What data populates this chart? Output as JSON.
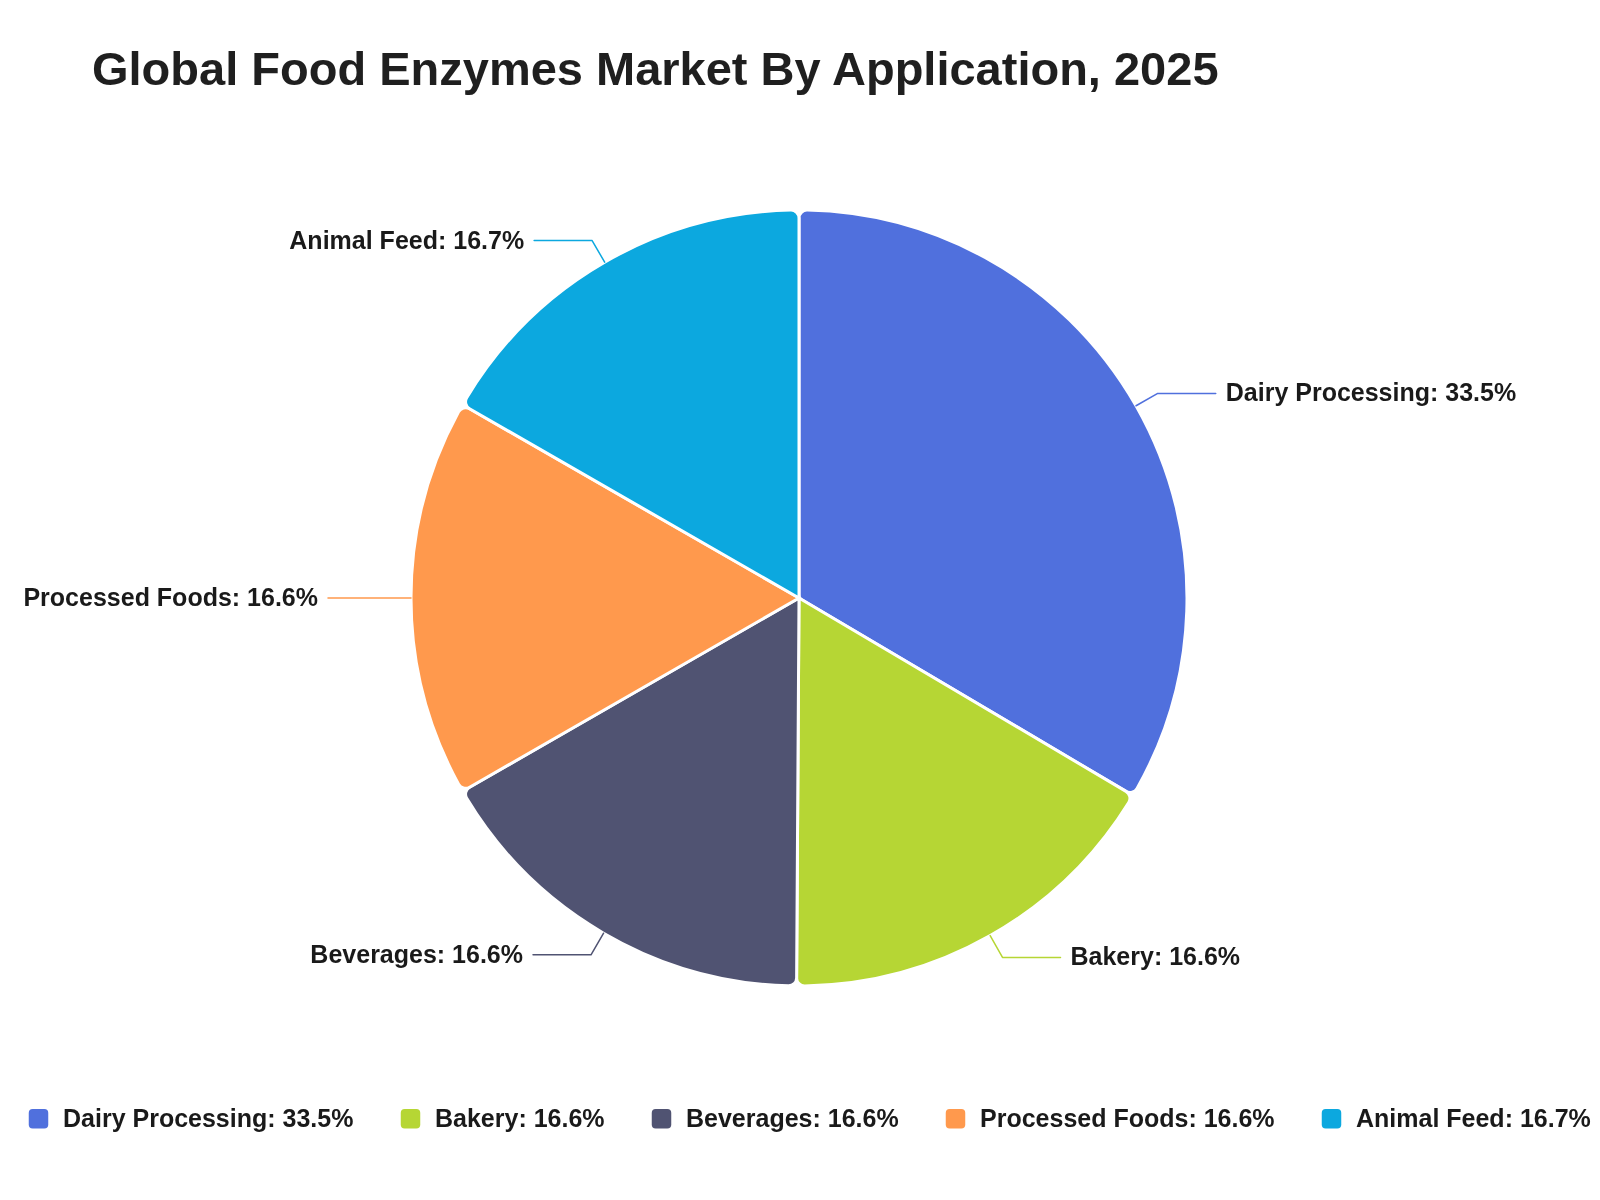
{
  "chart_data": {
    "type": "pie",
    "title": "Global Food Enzymes Market By Application, 2025",
    "categories": [
      "Dairy Processing",
      "Bakery",
      "Beverages",
      "Processed Foods",
      "Animal Feed"
    ],
    "values": [
      33.5,
      16.6,
      16.6,
      16.6,
      16.7
    ],
    "colors": [
      "#5070dd",
      "#b6d634",
      "#505372",
      "#ff994d",
      "#0ca8df"
    ],
    "value_labels": [
      "33.5%",
      "16.6%",
      "16.6%",
      "16.6%",
      "16.7%"
    ],
    "legend": "bottom"
  }
}
